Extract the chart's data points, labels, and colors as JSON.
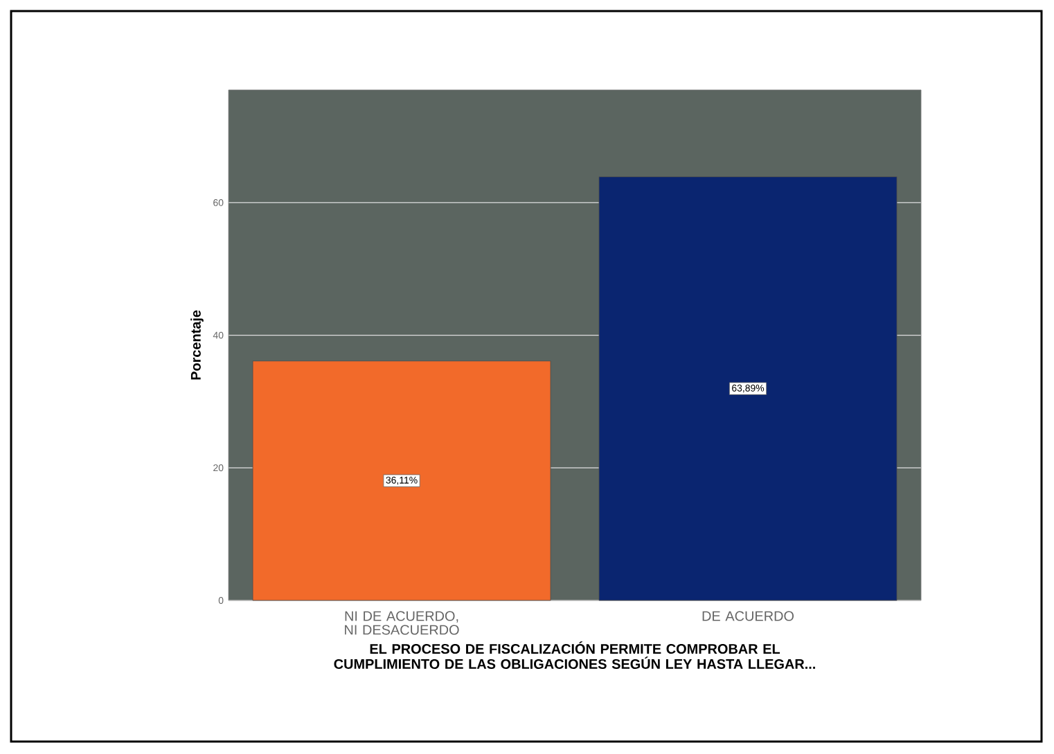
{
  "chart_data": {
    "type": "bar",
    "xlabel": "EL PROCESO DE FISCALIZACIÓN PERMITE COMPROBAR EL CUMPLIMIENTO DE LAS OBLIGACIONES SEGÚN LEY HASTA LLEGAR...",
    "ylabel": "Porcentaje",
    "categories": [
      "NI DE ACUERDO, NI DESACUERDO",
      "DE ACUERDO"
    ],
    "values": [
      36.11,
      63.89
    ],
    "colors": [
      "#f26a2a",
      "#0a2570"
    ],
    "value_labels": [
      "36,11%",
      "63,89%"
    ],
    "ylim": [
      0,
      77
    ],
    "yticks": [
      0,
      20,
      40,
      60
    ],
    "grid": "y"
  }
}
